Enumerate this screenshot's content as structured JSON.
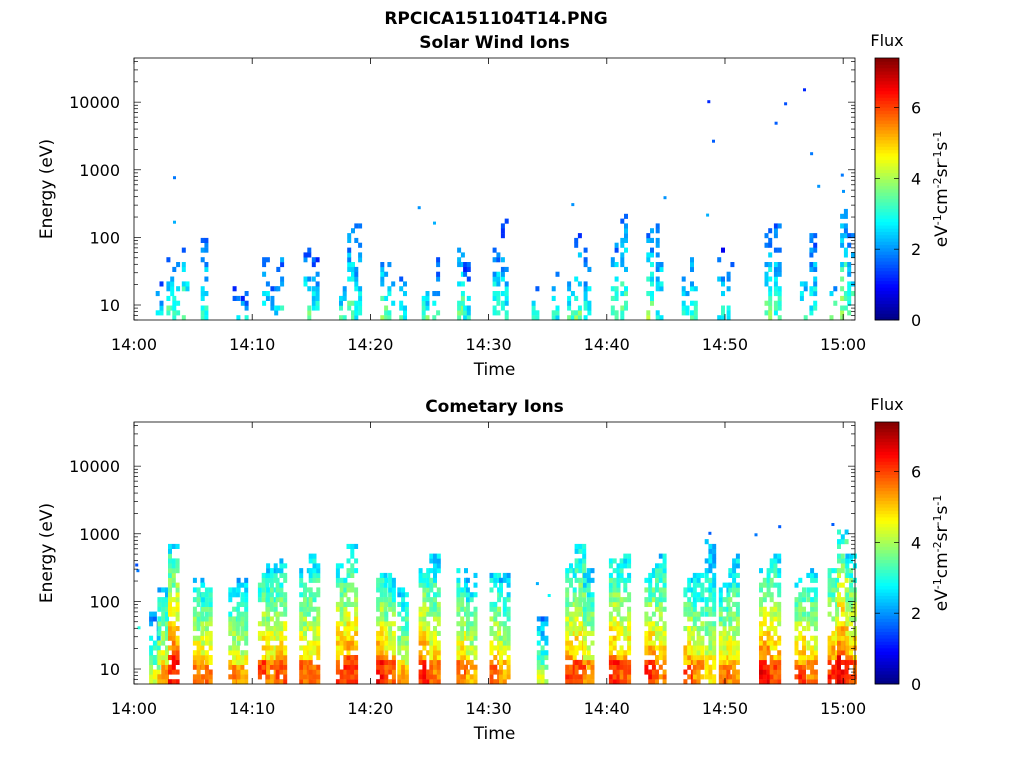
{
  "figure_title": "RPCICA151104T14.PNG",
  "chart_data": [
    {
      "type": "heatmap",
      "title": "Solar Wind Ions",
      "xlabel": "Time",
      "ylabel": "Energy (eV)",
      "x_ticks": [
        "14:00",
        "14:10",
        "14:20",
        "14:30",
        "14:40",
        "14:50",
        "15:00"
      ],
      "x_range_minutes": [
        0,
        61
      ],
      "y_scale": "log",
      "y_ticks": [
        10,
        100,
        1000,
        10000
      ],
      "y_tick_labels": [
        "10",
        "100",
        "1000",
        "10000"
      ],
      "y_range": [
        6,
        45000
      ],
      "colorbar": {
        "label": "Flux",
        "units": "eV-1cm-2sr-1s-1",
        "range": [
          0,
          7.4
        ],
        "ticks": [
          0,
          2,
          4,
          6
        ],
        "colormap": "jet"
      },
      "bursts": [
        {
          "t": 2.0,
          "top": 20,
          "lvl": 2.8
        },
        {
          "t": 2.9,
          "top": 45,
          "lvl": 3.5
        },
        {
          "t": 3.4,
          "top": 45,
          "lvl": 3.3
        },
        {
          "t": 4.2,
          "top": 60,
          "lvl": 3.8
        },
        {
          "t": 5.8,
          "top": 90,
          "lvl": 3.2
        },
        {
          "t": 8.5,
          "top": 20,
          "lvl": 2.8
        },
        {
          "t": 9.2,
          "top": 15,
          "lvl": 2.6
        },
        {
          "t": 11.0,
          "top": 45,
          "lvl": 3.0
        },
        {
          "t": 11.7,
          "top": 20,
          "lvl": 2.9
        },
        {
          "t": 12.2,
          "top": 60,
          "lvl": 3.3
        },
        {
          "t": 14.5,
          "top": 60,
          "lvl": 3.5
        },
        {
          "t": 15.2,
          "top": 50,
          "lvl": 3.2
        },
        {
          "t": 17.5,
          "top": 30,
          "lvl": 3.1
        },
        {
          "t": 18.2,
          "top": 120,
          "lvl": 3.6
        },
        {
          "t": 18.8,
          "top": 160,
          "lvl": 3.0
        },
        {
          "t": 21.0,
          "top": 55,
          "lvl": 3.6
        },
        {
          "t": 21.6,
          "top": 40,
          "lvl": 3.2
        },
        {
          "t": 22.6,
          "top": 35,
          "lvl": 3.0
        },
        {
          "t": 24.5,
          "top": 20,
          "lvl": 3.4
        },
        {
          "t": 25.4,
          "top": 45,
          "lvl": 3.1
        },
        {
          "t": 27.5,
          "top": 90,
          "lvl": 3.7
        },
        {
          "t": 28.0,
          "top": 40,
          "lvl": 3.0
        },
        {
          "t": 30.5,
          "top": 60,
          "lvl": 3.5
        },
        {
          "t": 31.2,
          "top": 180,
          "lvl": 3.0
        },
        {
          "t": 33.8,
          "top": 20,
          "lvl": 3.1
        },
        {
          "t": 35.5,
          "top": 40,
          "lvl": 2.9
        },
        {
          "t": 36.8,
          "top": 30,
          "lvl": 3.2
        },
        {
          "t": 37.4,
          "top": 100,
          "lvl": 3.6
        },
        {
          "t": 38.2,
          "top": 60,
          "lvl": 3.0
        },
        {
          "t": 40.5,
          "top": 80,
          "lvl": 3.6
        },
        {
          "t": 41.3,
          "top": 250,
          "lvl": 3.5
        },
        {
          "t": 43.5,
          "top": 120,
          "lvl": 3.8
        },
        {
          "t": 44.3,
          "top": 150,
          "lvl": 3.1
        },
        {
          "t": 46.5,
          "top": 30,
          "lvl": 3.3
        },
        {
          "t": 47.2,
          "top": 70,
          "lvl": 3.2
        },
        {
          "t": 49.5,
          "top": 60,
          "lvl": 2.9
        },
        {
          "t": 50.3,
          "top": 45,
          "lvl": 3.0
        },
        {
          "t": 53.5,
          "top": 120,
          "lvl": 3.6
        },
        {
          "t": 54.3,
          "top": 200,
          "lvl": 3.2
        },
        {
          "t": 56.5,
          "top": 30,
          "lvl": 3.4
        },
        {
          "t": 57.3,
          "top": 150,
          "lvl": 3.1
        },
        {
          "t": 59.0,
          "top": 20,
          "lvl": 3.8
        },
        {
          "t": 59.9,
          "top": 250,
          "lvl": 3.9
        },
        {
          "t": 60.5,
          "top": 120,
          "lvl": 3.5
        }
      ],
      "points": [
        {
          "t": 3.3,
          "e": 750,
          "lvl": 1.8
        },
        {
          "t": 3.3,
          "e": 165,
          "lvl": 2.2
        },
        {
          "t": 24.0,
          "e": 270,
          "lvl": 2.0
        },
        {
          "t": 25.3,
          "e": 160,
          "lvl": 2.2
        },
        {
          "t": 48.5,
          "e": 10000,
          "lvl": 1.2
        },
        {
          "t": 48.9,
          "e": 2600,
          "lvl": 1.6
        },
        {
          "t": 48.4,
          "e": 210,
          "lvl": 2.2
        },
        {
          "t": 54.2,
          "e": 4800,
          "lvl": 1.6
        },
        {
          "t": 55.0,
          "e": 9300,
          "lvl": 1.5
        },
        {
          "t": 56.6,
          "e": 15000,
          "lvl": 1.2
        },
        {
          "t": 57.2,
          "e": 1700,
          "lvl": 1.8
        },
        {
          "t": 57.8,
          "e": 560,
          "lvl": 2.0
        },
        {
          "t": 59.8,
          "e": 820,
          "lvl": 1.8
        },
        {
          "t": 59.9,
          "e": 470,
          "lvl": 2.0
        },
        {
          "t": 37.0,
          "e": 300,
          "lvl": 2.0
        },
        {
          "t": 44.8,
          "e": 380,
          "lvl": 2.0
        }
      ]
    },
    {
      "type": "heatmap",
      "title": "Cometary Ions",
      "xlabel": "Time",
      "ylabel": "Energy (eV)",
      "x_ticks": [
        "14:00",
        "14:10",
        "14:20",
        "14:30",
        "14:40",
        "14:50",
        "15:00"
      ],
      "x_range_minutes": [
        0,
        61
      ],
      "y_scale": "log",
      "y_ticks": [
        10,
        100,
        1000,
        10000
      ],
      "y_tick_labels": [
        "10",
        "100",
        "1000",
        "10000"
      ],
      "y_range": [
        6,
        45000
      ],
      "colorbar": {
        "label": "Flux",
        "units": "eV-1cm-2sr-1s-1",
        "range": [
          0,
          7.4
        ],
        "ticks": [
          0,
          2,
          4,
          6
        ],
        "colormap": "jet"
      },
      "bursts": [
        {
          "t": 1.6,
          "top": 60,
          "lvl": 4.2
        },
        {
          "t": 2.3,
          "top": 150,
          "lvl": 5.2
        },
        {
          "t": 3.2,
          "top": 600,
          "lvl": 6.2
        },
        {
          "t": 5.3,
          "top": 200,
          "lvl": 5.5
        },
        {
          "t": 6.0,
          "top": 180,
          "lvl": 5.4
        },
        {
          "t": 8.3,
          "top": 150,
          "lvl": 5.3
        },
        {
          "t": 9.0,
          "top": 200,
          "lvl": 5.0
        },
        {
          "t": 10.8,
          "top": 250,
          "lvl": 5.8
        },
        {
          "t": 11.5,
          "top": 350,
          "lvl": 5.4
        },
        {
          "t": 12.3,
          "top": 400,
          "lvl": 5.6
        },
        {
          "t": 14.3,
          "top": 300,
          "lvl": 5.5
        },
        {
          "t": 15.1,
          "top": 500,
          "lvl": 5.4
        },
        {
          "t": 17.4,
          "top": 350,
          "lvl": 5.9
        },
        {
          "t": 18.3,
          "top": 600,
          "lvl": 5.9
        },
        {
          "t": 20.8,
          "top": 250,
          "lvl": 6.2
        },
        {
          "t": 21.5,
          "top": 250,
          "lvl": 5.6
        },
        {
          "t": 22.6,
          "top": 150,
          "lvl": 5.0
        },
        {
          "t": 24.4,
          "top": 300,
          "lvl": 6.1
        },
        {
          "t": 25.3,
          "top": 450,
          "lvl": 5.4
        },
        {
          "t": 27.6,
          "top": 300,
          "lvl": 5.5
        },
        {
          "t": 28.4,
          "top": 250,
          "lvl": 5.0
        },
        {
          "t": 30.4,
          "top": 250,
          "lvl": 5.6
        },
        {
          "t": 31.2,
          "top": 250,
          "lvl": 5.0
        },
        {
          "t": 34.4,
          "top": 60,
          "lvl": 4.1
        },
        {
          "t": 36.8,
          "top": 350,
          "lvl": 5.8
        },
        {
          "t": 37.6,
          "top": 600,
          "lvl": 5.8
        },
        {
          "t": 38.3,
          "top": 300,
          "lvl": 5.2
        },
        {
          "t": 40.5,
          "top": 400,
          "lvl": 6.0
        },
        {
          "t": 41.4,
          "top": 450,
          "lvl": 5.6
        },
        {
          "t": 43.5,
          "top": 300,
          "lvl": 6.0
        },
        {
          "t": 44.4,
          "top": 500,
          "lvl": 5.5
        },
        {
          "t": 46.8,
          "top": 200,
          "lvl": 5.8
        },
        {
          "t": 47.6,
          "top": 250,
          "lvl": 5.2
        },
        {
          "t": 48.6,
          "top": 800,
          "lvl": 4.6
        },
        {
          "t": 49.8,
          "top": 180,
          "lvl": 5.5
        },
        {
          "t": 50.6,
          "top": 450,
          "lvl": 5.2
        },
        {
          "t": 53.2,
          "top": 300,
          "lvl": 6.3
        },
        {
          "t": 54.1,
          "top": 500,
          "lvl": 5.7
        },
        {
          "t": 56.2,
          "top": 200,
          "lvl": 5.9
        },
        {
          "t": 57.2,
          "top": 300,
          "lvl": 5.4
        },
        {
          "t": 59.0,
          "top": 300,
          "lvl": 6.0
        },
        {
          "t": 59.8,
          "top": 1000,
          "lvl": 6.3
        },
        {
          "t": 60.5,
          "top": 500,
          "lvl": 5.8
        }
      ],
      "points": [
        {
          "t": 0.1,
          "e": 340,
          "lvl": 1.5
        },
        {
          "t": 0.2,
          "e": 280,
          "lvl": 1.8
        },
        {
          "t": 0.3,
          "e": 40,
          "lvl": 3.0
        },
        {
          "t": 34.0,
          "e": 180,
          "lvl": 2.2
        },
        {
          "t": 35.0,
          "e": 120,
          "lvl": 2.8
        },
        {
          "t": 54.5,
          "e": 1250,
          "lvl": 1.6
        },
        {
          "t": 59.0,
          "e": 1350,
          "lvl": 1.6
        },
        {
          "t": 48.6,
          "e": 1000,
          "lvl": 1.6
        },
        {
          "t": 52.5,
          "e": 950,
          "lvl": 1.8
        }
      ]
    }
  ]
}
